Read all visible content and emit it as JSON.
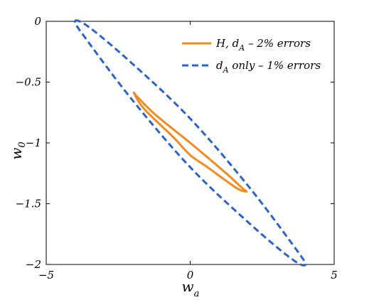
{
  "chart_data": {
    "type": "line",
    "title": "",
    "xlabel": {
      "main": "w",
      "sub": "a"
    },
    "ylabel": {
      "main": "w",
      "sub": "0"
    },
    "xlim": [
      -5,
      5
    ],
    "ylim": [
      -2,
      0
    ],
    "xticks": [
      -5,
      0,
      5
    ],
    "yticks": [
      0,
      -0.5,
      -1,
      -1.5,
      -2
    ],
    "xtick_labels": [
      "−5",
      "0",
      "5"
    ],
    "ytick_labels": [
      "0",
      "−0.5",
      "−1",
      "−1.5",
      "−2"
    ],
    "grid": false,
    "legend_position": "top-right",
    "series": [
      {
        "name": "H, d_A – 2% errors",
        "legend": {
          "pre": "H, d",
          "sub": "A",
          "post": " – 2% errors"
        },
        "style": "solid",
        "color": "#f28a1e",
        "ellipse": {
          "center": [
            0,
            -1.0
          ],
          "x_extent": [
            -1.95,
            1.95
          ],
          "y_extent": [
            -1.4,
            -0.59
          ]
        },
        "points": [
          [
            -1.95,
            -0.59
          ],
          [
            -1.8,
            -0.63
          ],
          [
            -1.2,
            -0.77
          ],
          [
            0,
            -1.0
          ],
          [
            1.2,
            -1.24
          ],
          [
            1.8,
            -1.37
          ],
          [
            1.95,
            -1.4
          ],
          [
            1.6,
            -1.37
          ],
          [
            0.6,
            -1.2
          ],
          [
            0,
            -1.1
          ],
          [
            -0.6,
            -0.95
          ],
          [
            -1.6,
            -0.72
          ]
        ]
      },
      {
        "name": "d_A only – 1% errors",
        "legend": {
          "pre": "d",
          "sub": "A",
          "post": " only – 1% errors"
        },
        "style": "dashed",
        "color": "#2b63c9",
        "ellipse": {
          "center": [
            0,
            -1.0
          ],
          "x_extent": [
            -4.0,
            4.0
          ],
          "y_extent": [
            -2.0,
            0.0
          ]
        },
        "points": [
          [
            -4.0,
            0.0
          ],
          [
            -3.5,
            -0.05
          ],
          [
            -2.0,
            -0.35
          ],
          [
            0,
            -0.8
          ],
          [
            2.0,
            -1.35
          ],
          [
            3.6,
            -1.85
          ],
          [
            4.0,
            -2.0
          ],
          [
            3.5,
            -1.95
          ],
          [
            2.0,
            -1.65
          ],
          [
            0,
            -1.2
          ],
          [
            -2.0,
            -0.65
          ],
          [
            -3.6,
            -0.15
          ]
        ]
      }
    ]
  }
}
